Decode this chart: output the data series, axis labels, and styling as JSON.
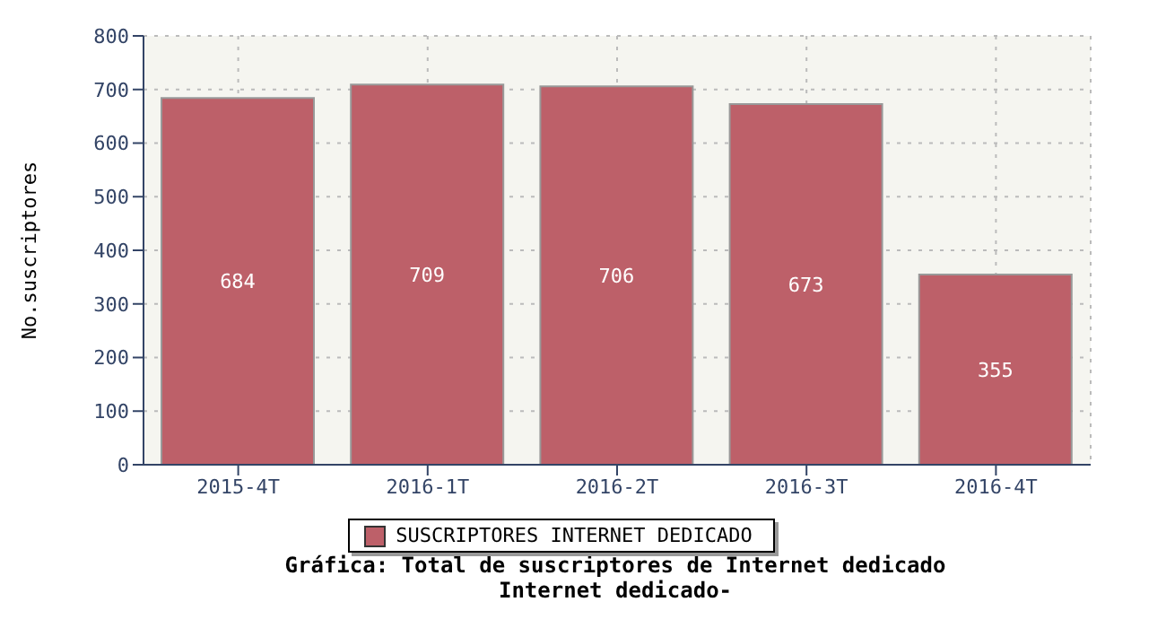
{
  "chart_data": {
    "type": "bar",
    "title": "Gráfica: Total de suscriptores de Internet dedicado",
    "subtitle": "Internet dedicado-",
    "ylabel": "No.suscriptores",
    "categories": [
      "2015-4T",
      "2016-1T",
      "2016-2T",
      "2016-3T",
      "2016-4T"
    ],
    "series": [
      {
        "name": "SUSCRIPTORES INTERNET DEDICADO",
        "color": "#bd6069",
        "values": [
          684,
          709,
          706,
          673,
          355
        ]
      }
    ],
    "ylim": [
      0,
      800
    ],
    "yticks": [
      0,
      100,
      200,
      300,
      400,
      500,
      600,
      700,
      800
    ],
    "grid": true,
    "legend": "bottom",
    "data_labels": true
  }
}
